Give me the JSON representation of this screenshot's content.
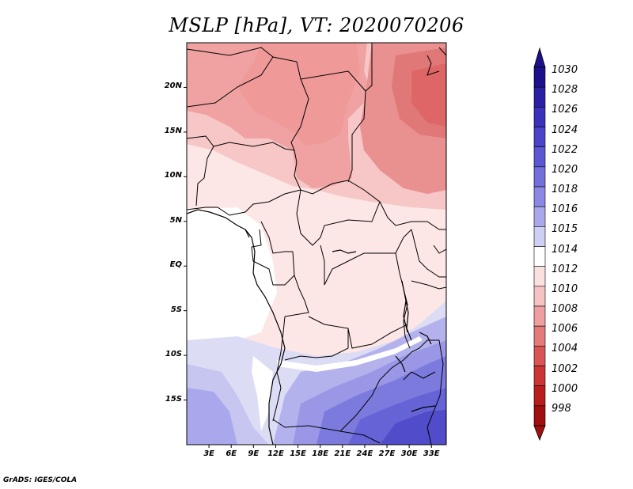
{
  "title": "MSLP [hPa], VT: 2020070206",
  "credit": "GrADS: IGES/COLA",
  "map": {
    "lat_labels": [
      "20N",
      "15N",
      "10N",
      "5N",
      "EQ",
      "5S",
      "10S",
      "15S"
    ],
    "lon_labels": [
      "3E",
      "6E",
      "9E",
      "12E",
      "15E",
      "18E",
      "21E",
      "24E",
      "27E",
      "30E",
      "33E"
    ],
    "lat_values": [
      20,
      15,
      10,
      5,
      0,
      -5,
      -10,
      -15
    ],
    "lon_values": [
      3,
      6,
      9,
      12,
      15,
      18,
      21,
      24,
      27,
      30,
      33
    ],
    "lon_range": [
      0,
      35
    ],
    "lat_range": [
      -20,
      25
    ]
  },
  "colorbar": {
    "levels": [
      "1030",
      "1028",
      "1026",
      "1024",
      "1022",
      "1020",
      "1018",
      "1016",
      "1015",
      "1014",
      "1012",
      "1010",
      "1008",
      "1006",
      "1004",
      "1002",
      "1000",
      "998"
    ],
    "colors": [
      "#1e0f8a",
      "#2b20a3",
      "#3a32b8",
      "#4a45c8",
      "#5c58d2",
      "#7370dc",
      "#8c89e4",
      "#aaa8ec",
      "#cfcff4",
      "#ffffff",
      "#fbe0e0",
      "#f6c3c3",
      "#ef9f9f",
      "#e47b7b",
      "#d95555",
      "#cc3535",
      "#b81e1e",
      "#a01010"
    ]
  }
}
